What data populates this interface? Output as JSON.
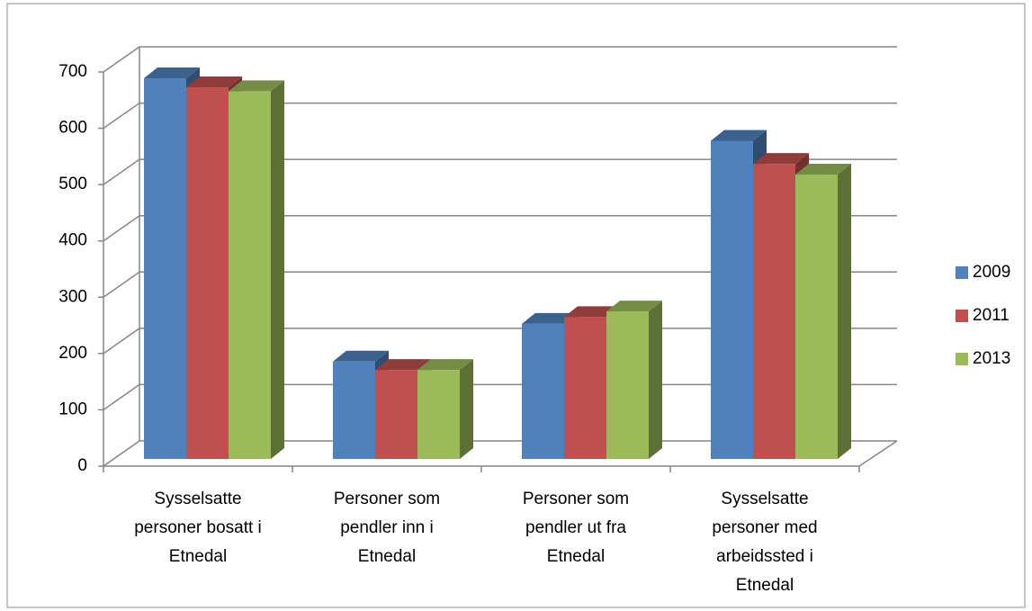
{
  "chart_data": {
    "type": "bar3d",
    "categories": [
      "Sysselsatte personer bosatt i Etnedal",
      "Personer som pendler inn i Etnedal",
      "Personer som pendler ut fra Etnedal",
      "Sysselsatte personer med arbeidssted i Etnedal"
    ],
    "series": [
      {
        "name": "2009",
        "color": "#4f81bd",
        "values": [
          676,
          173,
          240,
          565
        ]
      },
      {
        "name": "2011",
        "color": "#c0504d",
        "values": [
          660,
          158,
          252,
          524
        ]
      },
      {
        "name": "2013",
        "color": "#9bbb59",
        "values": [
          653,
          158,
          262,
          505
        ]
      }
    ],
    "ylim": [
      0,
      700
    ],
    "yticks": [
      0,
      100,
      200,
      300,
      400,
      500,
      600,
      700
    ],
    "grid": true,
    "legend": "right"
  }
}
